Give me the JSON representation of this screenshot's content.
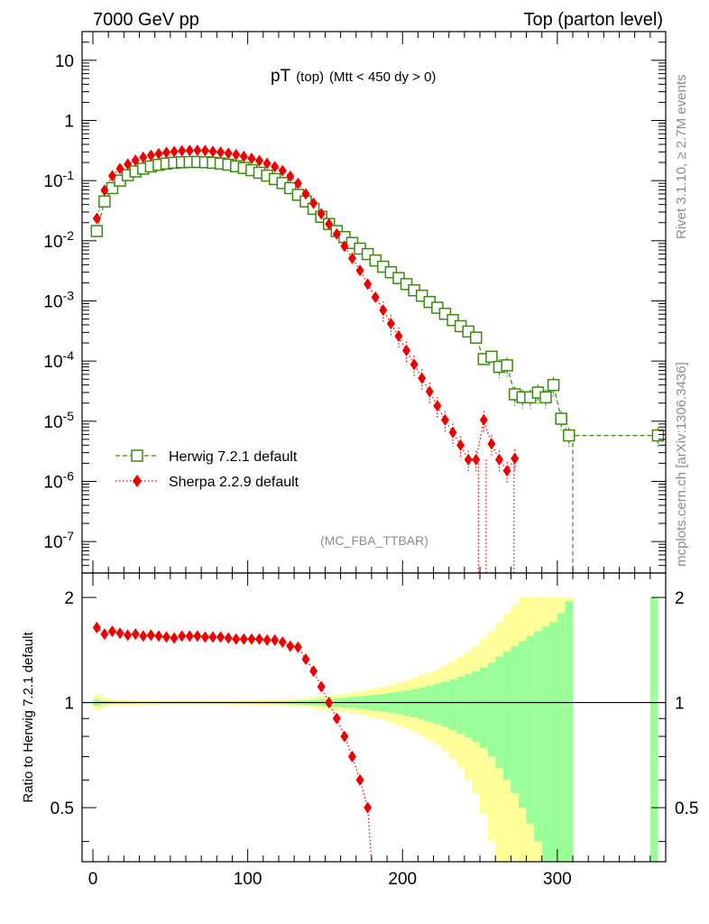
{
  "header": {
    "left": "7000 GeV pp",
    "right": "Top (parton level)"
  },
  "side_labels": {
    "rivet": "Rivet 3.1.10, ≥ 2.7M events",
    "mcplots": "mcplots.cern.ch [arXiv:1306.3436]"
  },
  "colors": {
    "herwig": "#3a8a10",
    "sherpa": "#ee0000",
    "band_yellow": "#ffff99",
    "band_green": "#99ff99"
  },
  "chart_data": [
    {
      "type": "scatter",
      "title_main": "pT",
      "title_sub1": "(top)",
      "title_sub2": "(Mtt < 450 dy > 0)",
      "watermark": "(MC_FBA_TTBAR)",
      "yscale": "log",
      "xlim": [
        -7,
        370
      ],
      "ylim": [
        3e-08,
        30
      ],
      "y_tick_labels": [
        "10",
        "1",
        "10^-1",
        "10^-2",
        "10^-3",
        "10^-4",
        "10^-5",
        "10^-6",
        "10^-7"
      ],
      "legend": [
        "Herwig 7.2.1 default",
        "Sherpa 2.2.9 default"
      ],
      "legend_placement": "bottom-left",
      "series": [
        {
          "name": "Herwig 7.2.1 default",
          "marker": "open-square",
          "line": "dashed",
          "x": [
            2.5,
            7.5,
            12.5,
            17.5,
            22.5,
            27.5,
            32.5,
            37.5,
            42.5,
            47.5,
            52.5,
            57.5,
            62.5,
            67.5,
            72.5,
            77.5,
            82.5,
            87.5,
            92.5,
            97.5,
            102.5,
            107.5,
            112.5,
            117.5,
            122.5,
            127.5,
            132.5,
            137.5,
            142.5,
            147.5,
            152.5,
            157.5,
            162.5,
            167.5,
            172.5,
            177.5,
            182.5,
            187.5,
            192.5,
            197.5,
            202.5,
            207.5,
            212.5,
            217.5,
            222.5,
            227.5,
            232.5,
            237.5,
            242.5,
            247.5,
            252.5,
            257.5,
            262.5,
            267.5,
            272.5,
            277.5,
            282.5,
            287.5,
            292.5,
            297.5,
            302.5,
            307.5,
            365
          ],
          "y": [
            0.0145,
            0.045,
            0.075,
            0.1,
            0.123,
            0.142,
            0.158,
            0.172,
            0.183,
            0.192,
            0.198,
            0.202,
            0.204,
            0.204,
            0.202,
            0.198,
            0.192,
            0.184,
            0.173,
            0.162,
            0.149,
            0.135,
            0.121,
            0.106,
            0.091,
            0.075,
            0.058,
            0.045,
            0.034,
            0.025,
            0.019,
            0.0145,
            0.0115,
            0.0092,
            0.0074,
            0.006,
            0.0047,
            0.0037,
            0.003,
            0.0024,
            0.0019,
            0.0015,
            0.00122,
            0.00096,
            0.00077,
            0.00061,
            0.00048,
            0.00038,
            0.00031,
            0.000245,
            0.000108,
            0.000118,
            8e-05,
            8.5e-05,
            2.8e-05,
            2.5e-05,
            2.5e-05,
            3e-05,
            2.5e-05,
            4e-05,
            1.1e-05,
            5.8e-06,
            5.8e-06
          ]
        },
        {
          "name": "Sherpa 2.2.9 default",
          "marker": "filled-diamond",
          "line": "dotted",
          "x": [
            2.5,
            7.5,
            12.5,
            17.5,
            22.5,
            27.5,
            32.5,
            37.5,
            42.5,
            47.5,
            52.5,
            57.5,
            62.5,
            67.5,
            72.5,
            77.5,
            82.5,
            87.5,
            92.5,
            97.5,
            102.5,
            107.5,
            112.5,
            117.5,
            122.5,
            127.5,
            132.5,
            137.5,
            142.5,
            147.5,
            152.5,
            157.5,
            162.5,
            167.5,
            172.5,
            177.5,
            182.5,
            187.5,
            192.5,
            197.5,
            202.5,
            207.5,
            212.5,
            217.5,
            222.5,
            227.5,
            232.5,
            237.5,
            242.5,
            247.5,
            252.5,
            257.5,
            262.5,
            267.5,
            272.5
          ],
          "y": [
            0.0235,
            0.069,
            0.12,
            0.158,
            0.188,
            0.218,
            0.243,
            0.263,
            0.279,
            0.293,
            0.303,
            0.313,
            0.317,
            0.318,
            0.315,
            0.305,
            0.297,
            0.285,
            0.27,
            0.252,
            0.233,
            0.214,
            0.193,
            0.17,
            0.146,
            0.118,
            0.09,
            0.06,
            0.042,
            0.028,
            0.019,
            0.013,
            0.0081,
            0.0051,
            0.0032,
            0.0019,
            0.00115,
            0.0007,
            0.00042,
            0.00026,
            0.00015,
            8.8e-05,
            5.2e-05,
            3.1e-05,
            1.8e-05,
            1.05e-05,
            6.5e-06,
            4e-06,
            2.3e-06,
            2.3e-06,
            1.05e-05,
            4.2e-06,
            2.3e-06,
            1.5e-06,
            2.4e-06
          ]
        }
      ]
    },
    {
      "type": "scatter",
      "ylabel": "Ratio to Herwig 7.2.1 default",
      "xlabel": "",
      "yscale": "log",
      "xlim": [
        -7,
        370
      ],
      "ylim": [
        0.35,
        2.35
      ],
      "x_tick_labels": [
        "0",
        "100",
        "200",
        "300"
      ],
      "y_tick_labels": [
        "2",
        "1",
        "0.5"
      ],
      "reference_line": 1,
      "band_edges": [
        0,
        5,
        10,
        15,
        20,
        25,
        30,
        35,
        40,
        45,
        50,
        55,
        60,
        65,
        70,
        75,
        80,
        85,
        90,
        95,
        100,
        105,
        110,
        115,
        120,
        125,
        130,
        135,
        140,
        145,
        150,
        155,
        160,
        165,
        170,
        175,
        180,
        185,
        190,
        195,
        200,
        205,
        210,
        215,
        220,
        225,
        230,
        235,
        240,
        245,
        250,
        255,
        260,
        265,
        270,
        275,
        280,
        285,
        290,
        295,
        300,
        305,
        310,
        360,
        365
      ],
      "band_green_rel": [
        0.02,
        0.012,
        0.009,
        0.008,
        0.007,
        0.006,
        0.006,
        0.006,
        0.006,
        0.006,
        0.006,
        0.006,
        0.006,
        0.006,
        0.006,
        0.006,
        0.006,
        0.006,
        0.006,
        0.007,
        0.007,
        0.007,
        0.008,
        0.009,
        0.01,
        0.011,
        0.013,
        0.015,
        0.018,
        0.021,
        0.024,
        0.028,
        0.032,
        0.036,
        0.041,
        0.046,
        0.052,
        0.058,
        0.065,
        0.073,
        0.082,
        0.092,
        0.104,
        0.117,
        0.131,
        0.147,
        0.165,
        0.185,
        0.205,
        0.23,
        0.26,
        0.3,
        0.35,
        0.4,
        0.45,
        0.5,
        0.55,
        0.6,
        0.65,
        0.7,
        0.8,
        0.95,
        0,
        1
      ],
      "band_yellow_rel": [
        0.05,
        0.03,
        0.022,
        0.019,
        0.017,
        0.015,
        0.014,
        0.013,
        0.013,
        0.013,
        0.013,
        0.013,
        0.013,
        0.013,
        0.013,
        0.013,
        0.013,
        0.013,
        0.013,
        0.014,
        0.015,
        0.016,
        0.017,
        0.019,
        0.021,
        0.023,
        0.026,
        0.03,
        0.035,
        0.04,
        0.046,
        0.053,
        0.06,
        0.068,
        0.077,
        0.087,
        0.098,
        0.11,
        0.124,
        0.139,
        0.156,
        0.175,
        0.196,
        0.22,
        0.245,
        0.275,
        0.31,
        0.35,
        0.4,
        0.45,
        0.52,
        0.6,
        0.7,
        0.8,
        0.9,
        1,
        1,
        1,
        1,
        1,
        1,
        1,
        0,
        1
      ],
      "series": [
        {
          "name": "Sherpa 2.2.9 default",
          "x": [
            2.5,
            7.5,
            12.5,
            17.5,
            22.5,
            27.5,
            32.5,
            37.5,
            42.5,
            47.5,
            52.5,
            57.5,
            62.5,
            67.5,
            72.5,
            77.5,
            82.5,
            87.5,
            92.5,
            97.5,
            102.5,
            107.5,
            112.5,
            117.5,
            122.5,
            127.5,
            132.5,
            137.5,
            142.5,
            147.5,
            152.5,
            157.5,
            162.5,
            167.5,
            172.5,
            177.5
          ],
          "y": [
            1.64,
            1.57,
            1.6,
            1.58,
            1.56,
            1.57,
            1.55,
            1.56,
            1.55,
            1.54,
            1.53,
            1.55,
            1.55,
            1.55,
            1.54,
            1.54,
            1.54,
            1.53,
            1.52,
            1.52,
            1.52,
            1.52,
            1.51,
            1.51,
            1.49,
            1.45,
            1.44,
            1.33,
            1.23,
            1.11,
            1.0,
            0.9,
            0.8,
            0.7,
            0.6,
            0.5
          ]
        }
      ]
    }
  ]
}
